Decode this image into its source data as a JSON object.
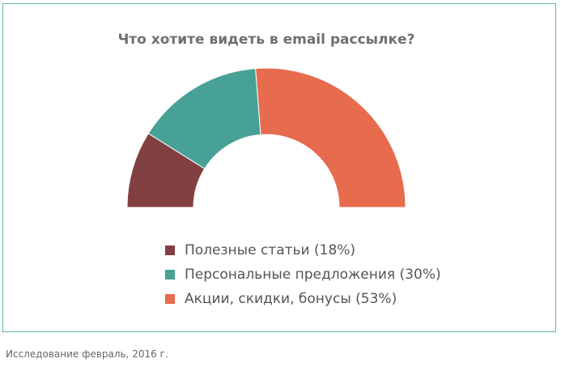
{
  "chart_data": {
    "type": "pie",
    "subtype": "semi-donut",
    "title": "Что хотите видеть в email рассылке?",
    "categories": [
      "Полезные статьи (18%)",
      "Персональные предложения (30%)",
      "Акции, скидки, бонусы (53%)"
    ],
    "values": [
      18,
      30,
      53
    ],
    "colors": [
      "#823f41",
      "#47a197",
      "#e76b4d"
    ],
    "legend_position": "bottom"
  },
  "caption": "Исследование февраль, 2016 г."
}
